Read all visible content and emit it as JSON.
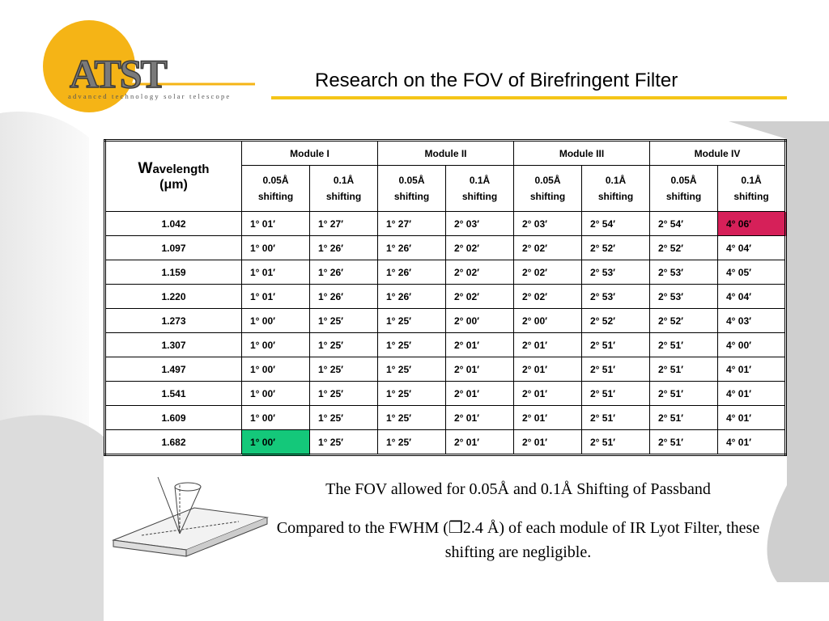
{
  "header": {
    "logo": "ATST",
    "logo_tagline": "advanced technology solar telescope",
    "title": "Research on the FOV of Birefringent Filter"
  },
  "table": {
    "corner": [
      "Wavelength",
      "(μm)"
    ],
    "modules": [
      "Module I",
      "Module II",
      "Module III",
      "Module IV"
    ],
    "sub_headers": [
      "0.05Å shifting",
      "0.1Å shifting",
      "0.05Å shifting",
      "0.1Å shifting",
      "0.05Å shifting",
      "0.1Å shifting",
      "0.05Å shifting",
      "0.1Å shifting"
    ],
    "rows": [
      [
        "1.042",
        "1° 01′",
        "1° 27′",
        "1° 27′",
        "2° 03′",
        "2° 03′",
        "2° 54′",
        "2° 54′",
        "4° 06′"
      ],
      [
        "1.097",
        "1° 00′",
        "1° 26′",
        "1° 26′",
        "2° 02′",
        "2° 02′",
        "2° 52′",
        "2° 52′",
        "4° 04′"
      ],
      [
        "1.159",
        "1° 01′",
        "1° 26′",
        "1° 26′",
        "2° 02′",
        "2° 02′",
        "2° 53′",
        "2° 53′",
        "4° 05′"
      ],
      [
        "1.220",
        "1° 01′",
        "1° 26′",
        "1° 26′",
        "2° 02′",
        "2° 02′",
        "2° 53′",
        "2° 53′",
        "4° 04′"
      ],
      [
        "1.273",
        "1° 00′",
        "1° 25′",
        "1° 25′",
        "2° 00′",
        "2° 00′",
        "2° 52′",
        "2° 52′",
        "4° 03′"
      ],
      [
        "1.307",
        "1° 00′",
        "1° 25′",
        "1° 25′",
        "2° 01′",
        "2° 01′",
        "2° 51′",
        "2° 51′",
        "4° 00′"
      ],
      [
        "1.497",
        "1° 00′",
        "1° 25′",
        "1° 25′",
        "2° 01′",
        "2° 01′",
        "2° 51′",
        "2° 51′",
        "4° 01′"
      ],
      [
        "1.541",
        "1° 00′",
        "1° 25′",
        "1° 25′",
        "2° 01′",
        "2° 01′",
        "2° 51′",
        "2° 51′",
        "4° 01′"
      ],
      [
        "1.609",
        "1° 00′",
        "1° 25′",
        "1° 25′",
        "2° 01′",
        "2° 01′",
        "2° 51′",
        "2° 51′",
        "4° 01′"
      ],
      [
        "1.682",
        "1° 00′",
        "1° 25′",
        "1° 25′",
        "2° 01′",
        "2° 01′",
        "2° 51′",
        "2° 51′",
        "4° 01′"
      ]
    ],
    "highlights": [
      {
        "row": 0,
        "col": 8,
        "color": "#d62059"
      },
      {
        "row": 9,
        "col": 1,
        "color": "#14c87a"
      }
    ]
  },
  "captions": [
    "The FOV allowed for 0.05Å and 0.1Å Shifting of Passband",
    "Compared to the FWHM (❒2.4 Å) of each module of IR Lyot Filter, these shifting are negligible."
  ]
}
